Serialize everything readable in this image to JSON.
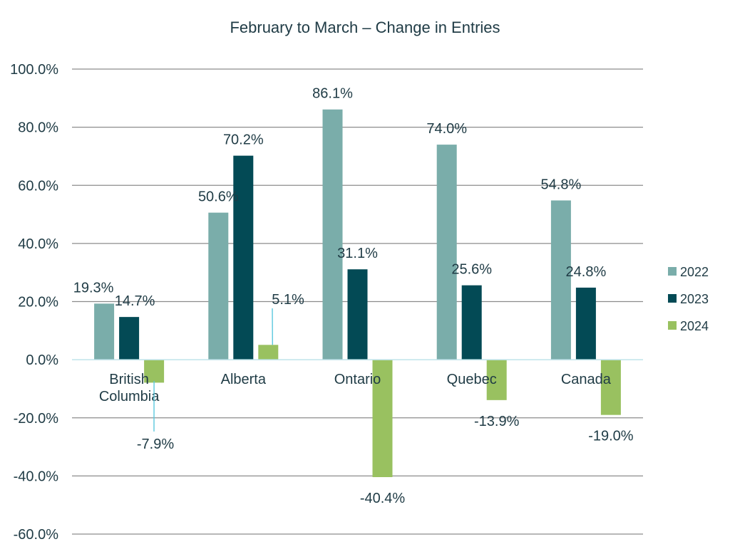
{
  "chart_data": {
    "type": "bar",
    "title": "February to March – Change in Entries",
    "categories": [
      "British Columbia",
      "Alberta",
      "Ontario",
      "Quebec",
      "Canada"
    ],
    "category_lines": [
      [
        "British",
        "Columbia"
      ],
      [
        "Alberta"
      ],
      [
        "Ontario"
      ],
      [
        "Quebec"
      ],
      [
        "Canada"
      ]
    ],
    "series": [
      {
        "name": "2022",
        "color": "#7aadaa",
        "values": [
          19.3,
          50.6,
          86.1,
          74.0,
          54.8
        ],
        "labels": [
          "19.3%",
          "50.6%",
          "86.1%",
          "74.0%",
          "54.8%"
        ]
      },
      {
        "name": "2023",
        "color": "#034a55",
        "values": [
          14.7,
          70.2,
          31.1,
          25.6,
          24.8
        ],
        "labels": [
          "14.7%",
          "70.2%",
          "31.1%",
          "25.6%",
          "24.8%"
        ]
      },
      {
        "name": "2024",
        "color": "#99c160",
        "values": [
          -7.9,
          5.1,
          -40.4,
          -13.9,
          -19.0
        ],
        "labels": [
          "-7.9%",
          "5.1%",
          "-40.4%",
          "-13.9%",
          "-19.0%"
        ]
      }
    ],
    "ylim": [
      -60,
      100
    ],
    "yticks": [
      100,
      80,
      60,
      40,
      20,
      0,
      -20,
      -40,
      -60
    ],
    "ytick_labels": [
      "100.0%",
      "80.0%",
      "60.0%",
      "40.0%",
      "20.0%",
      "0.0%",
      "-20.0%",
      "-40.0%",
      "-60.0%"
    ],
    "xlabel": "",
    "ylabel": "",
    "grid": true,
    "legend_position": "right"
  }
}
